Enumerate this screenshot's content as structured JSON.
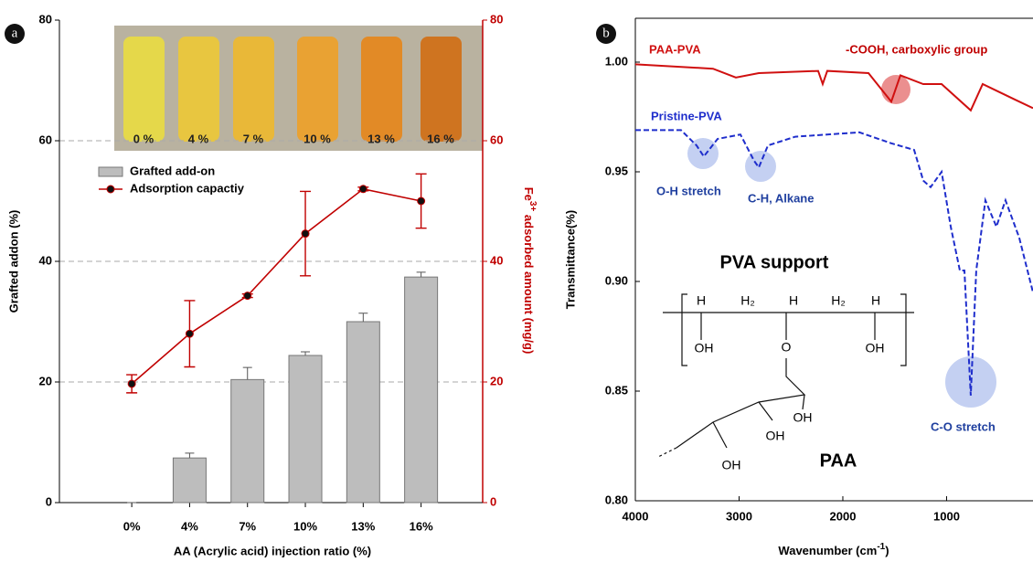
{
  "chart_data": [
    {
      "type": "bar",
      "panel": "a",
      "categories": [
        "0%",
        "4%",
        "7%",
        "10%",
        "13%",
        "16%"
      ],
      "series": [
        {
          "name": "Grafted add-on",
          "color": "#bdbdbd",
          "values": [
            0,
            7.4,
            20.4,
            24.4,
            30,
            37.4
          ],
          "errors": [
            0,
            0.8,
            2,
            0.6,
            1.4,
            0.8
          ]
        },
        {
          "name": "Adsorption capactiy",
          "color": "#c00000",
          "type": "line",
          "axis": "y2",
          "values": [
            19.7,
            28,
            34.3,
            44.6,
            52,
            50
          ],
          "errors": [
            1.5,
            5.5,
            0.3,
            7,
            0.3,
            4.5
          ]
        }
      ],
      "ylim": [
        0,
        80
      ],
      "yticks": [
        0,
        20,
        40,
        60,
        80
      ],
      "y2lim": [
        0,
        80
      ],
      "y2ticks": [
        0,
        20,
        40,
        60,
        80
      ],
      "ylabel": "Grafted addon (%)",
      "y2label": {
        "base": "Fe",
        "sup": "3+",
        "rest": " adsorbed amount (mg/g)"
      },
      "xlabel": "AA (Acrylic acid) injection ratio (%)",
      "photo_labels": [
        "0 %",
        "4 %",
        "7 %",
        "10 %",
        "13 %",
        "16 %"
      ],
      "grid": true
    },
    {
      "type": "line",
      "panel": "b",
      "series": [
        {
          "name": "PAA-PVA",
          "color": "#d01010",
          "dash": false,
          "x": [
            4000,
            3251,
            3031,
            2810,
            2238,
            2194,
            2150,
            1753,
            1533,
            1445,
            1225,
            1048,
            767,
            652,
            520,
            344,
            167
          ],
          "values": [
            0.999,
            0.997,
            0.993,
            0.995,
            0.996,
            0.99,
            0.996,
            0.995,
            0.982,
            0.994,
            0.99,
            0.99,
            0.978,
            0.99,
            0.987,
            0.983,
            0.979
          ]
        },
        {
          "name": "Pristine-PVA",
          "color": "#1f2ecc",
          "dash": true,
          "x": [
            4000,
            3560,
            3410,
            3340,
            3207,
            2987,
            2855,
            2810,
            2722,
            2458,
            1841,
            1533,
            1313,
            1225,
            1154,
            1048,
            960,
            916,
            872,
            828,
            767,
            714,
            626,
            520,
            432,
            300,
            167
          ],
          "values": [
            0.969,
            0.969,
            0.962,
            0.957,
            0.965,
            0.967,
            0.955,
            0.952,
            0.962,
            0.966,
            0.968,
            0.963,
            0.96,
            0.946,
            0.943,
            0.95,
            0.925,
            0.915,
            0.905,
            0.905,
            0.848,
            0.905,
            0.937,
            0.925,
            0.937,
            0.92,
            0.895
          ]
        }
      ],
      "xlim": [
        4000,
        167
      ],
      "xticks": [
        4000,
        3000,
        2000,
        1000
      ],
      "ylim": [
        0.8,
        1.02
      ],
      "yticks": [
        {
          "value": 0.8,
          "label": "0.80"
        },
        0.85,
        {
          "value": 0.9,
          "label": "0.90"
        },
        0.95,
        {
          "value": 1.0,
          "label": "1.00"
        }
      ],
      "ylabel": "Transmittance(%)",
      "xlabel": {
        "base": "Wavenumber (cm",
        "sup": "-1",
        "rest": ")"
      },
      "annotations": [
        "-COOH, carboxylic group",
        "O-H stretch",
        "C-H, Alkane",
        "C-O stretch"
      ],
      "structure": {
        "title": "PVA support",
        "label": "PAA",
        "atoms": [
          "H",
          "H₂",
          "H",
          "H₂",
          "H",
          "OH",
          "O",
          "OH",
          "OH",
          "OH",
          "OH"
        ]
      }
    }
  ]
}
